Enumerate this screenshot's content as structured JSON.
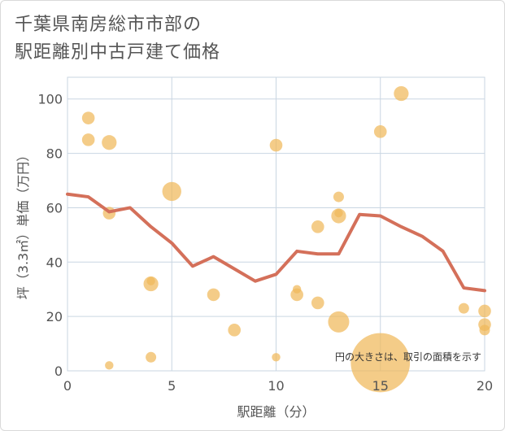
{
  "title_lines": [
    "千葉県南房総市市部の",
    "駅距離別中古戸建て価格"
  ],
  "note": "円の大きさは、取引の面積を示す",
  "colors": {
    "line": "#d4705a",
    "bubble": "#f0b85a",
    "grid": "#c9d6e2",
    "plot_bg": "#ffffff",
    "text": "#555555"
  },
  "chart_data": {
    "type": "scatter",
    "title": "千葉県南房総市市部の 駅距離別中古戸建て価格",
    "xlabel": "駅距離（分）",
    "ylabel": "坪（3.3㎡）単価（万円）",
    "xlim": [
      0,
      20
    ],
    "ylim": [
      0,
      108
    ],
    "xticks": [
      0,
      5,
      10,
      15,
      20
    ],
    "yticks": [
      0,
      20,
      40,
      60,
      80,
      100
    ],
    "grid": true,
    "line": {
      "x": [
        0,
        1,
        2,
        3,
        4,
        5,
        6,
        7,
        8,
        9,
        10,
        11,
        12,
        13,
        14,
        15,
        16,
        17,
        18,
        19,
        20
      ],
      "y": [
        65,
        64,
        58.5,
        60,
        53,
        47,
        38.5,
        42,
        37.5,
        33,
        35.5,
        44,
        43,
        43,
        57.5,
        57,
        53,
        49.5,
        44,
        30.5,
        29.5
      ]
    },
    "bubbles": [
      {
        "x": 1,
        "y": 93,
        "size": 6
      },
      {
        "x": 1,
        "y": 85,
        "size": 6
      },
      {
        "x": 2,
        "y": 84,
        "size": 7
      },
      {
        "x": 2,
        "y": 58,
        "size": 6
      },
      {
        "x": 2,
        "y": 2,
        "size": 4
      },
      {
        "x": 4,
        "y": 33,
        "size": 4
      },
      {
        "x": 4,
        "y": 32,
        "size": 7
      },
      {
        "x": 4,
        "y": 5,
        "size": 5
      },
      {
        "x": 5,
        "y": 66,
        "size": 9
      },
      {
        "x": 7,
        "y": 28,
        "size": 6
      },
      {
        "x": 8,
        "y": 15,
        "size": 6
      },
      {
        "x": 10,
        "y": 83,
        "size": 6
      },
      {
        "x": 10,
        "y": 5,
        "size": 4
      },
      {
        "x": 11,
        "y": 30,
        "size": 4
      },
      {
        "x": 11,
        "y": 28,
        "size": 6
      },
      {
        "x": 12,
        "y": 53,
        "size": 6
      },
      {
        "x": 12,
        "y": 25,
        "size": 6
      },
      {
        "x": 13,
        "y": 64,
        "size": 5
      },
      {
        "x": 13,
        "y": 58,
        "size": 4
      },
      {
        "x": 13,
        "y": 57,
        "size": 7
      },
      {
        "x": 13,
        "y": 18,
        "size": 10
      },
      {
        "x": 15,
        "y": 88,
        "size": 6
      },
      {
        "x": 15,
        "y": 3,
        "size": 28
      },
      {
        "x": 16,
        "y": 102,
        "size": 7
      },
      {
        "x": 19,
        "y": 23,
        "size": 5
      },
      {
        "x": 20,
        "y": 22,
        "size": 6
      },
      {
        "x": 20,
        "y": 17,
        "size": 6
      },
      {
        "x": 20,
        "y": 15,
        "size": 5
      }
    ]
  }
}
